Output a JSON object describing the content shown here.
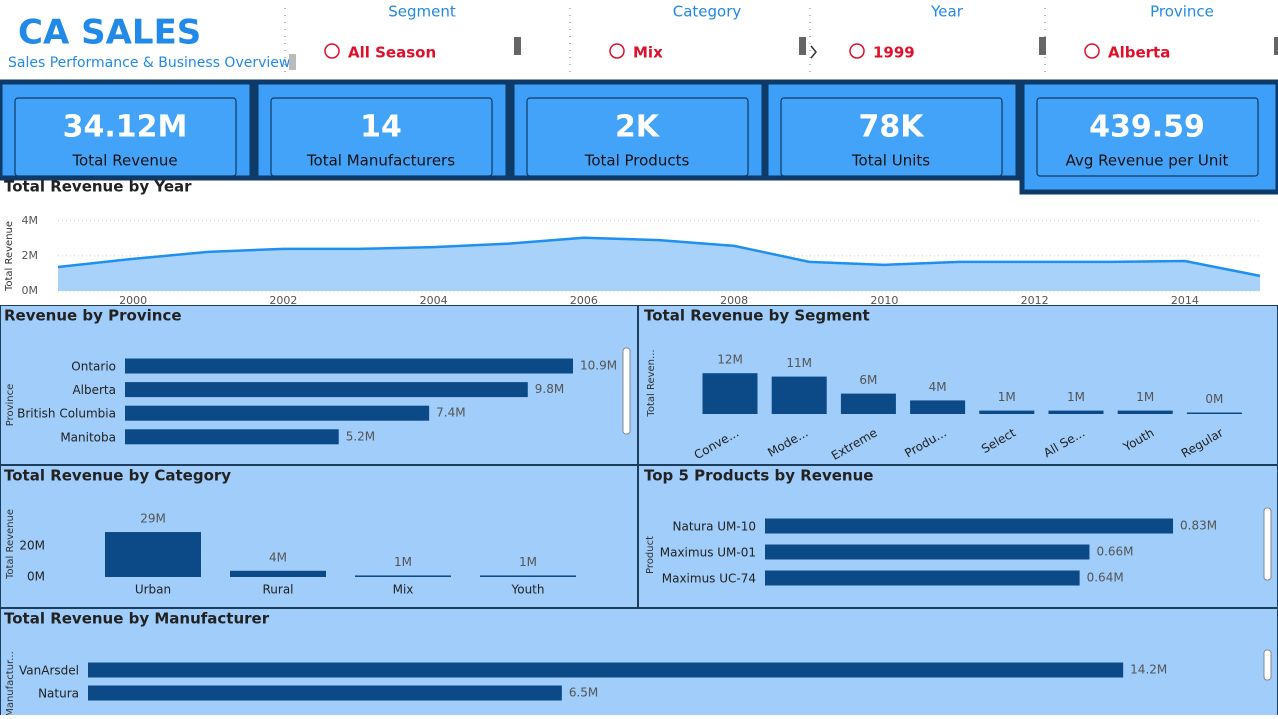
{
  "header": {
    "title": "CA SALES",
    "subtitle": "Sales Performance & Business Overview"
  },
  "slicers": [
    {
      "title": "Segment",
      "item": "All Season"
    },
    {
      "title": "Category",
      "item": "Mix"
    },
    {
      "title": "Year",
      "item": "1999"
    },
    {
      "title": "Province",
      "item": "Alberta"
    }
  ],
  "kpis": [
    {
      "value": "34.12M",
      "label": "Total Revenue"
    },
    {
      "value": "14",
      "label": "Total Manufacturers"
    },
    {
      "value": "2K",
      "label": "Total Products"
    },
    {
      "value": "78K",
      "label": "Total Units"
    },
    {
      "value": "439.59",
      "label": "Avg Revenue per Unit"
    }
  ],
  "chart_data": [
    {
      "type": "line",
      "title": "Total Revenue by Year",
      "y_label": "Total Revenue",
      "color": "#1f8ff0",
      "fill": "#a9d2fa",
      "x": [
        1999,
        2000,
        2001,
        2002,
        2003,
        2004,
        2005,
        2006,
        2007,
        2008,
        2009,
        2010,
        2011,
        2012,
        2013,
        2014,
        2015
      ],
      "values": [
        1.37,
        1.83,
        2.23,
        2.4,
        2.4,
        2.5,
        2.7,
        3.03,
        2.9,
        2.57,
        1.66,
        1.49,
        1.66,
        1.66,
        1.66,
        1.71,
        0.86
      ],
      "xlim": [
        1999,
        2015
      ],
      "xticks": [
        2000,
        2002,
        2004,
        2006,
        2008,
        2010,
        2012,
        2014
      ],
      "ylim": [
        0,
        4.5
      ],
      "yticks": [
        {
          "value": 0,
          "label": "0M"
        },
        {
          "value": 2,
          "label": "2M"
        },
        {
          "value": 4,
          "label": "4M"
        }
      ],
      "grid": true
    },
    {
      "type": "hbar",
      "title": "Revenue by Province",
      "y_label": "Province",
      "color": "#0b4a87",
      "categories": [
        "Ontario",
        "Alberta",
        "British Columbia",
        "Manitoba"
      ],
      "values": [
        10.9,
        9.8,
        7.4,
        5.2
      ],
      "value_labels": [
        "10.9M",
        "9.8M",
        "7.4M",
        "5.2M"
      ]
    },
    {
      "type": "column",
      "title": "Total Revenue by Segment",
      "y_label": "Total Reven...",
      "color": "#0b4a87",
      "categories": [
        "Conve...",
        "Mode...",
        "Extreme",
        "Produ...",
        "Select",
        "All Se...",
        "Youth",
        "Regular"
      ],
      "values": [
        12,
        11,
        6,
        4,
        1,
        1,
        1,
        0
      ],
      "value_labels": [
        "12M",
        "11M",
        "6M",
        "4M",
        "1M",
        "1M",
        "1M",
        "0M"
      ]
    },
    {
      "type": "column",
      "title": "Total Revenue by Category",
      "y_label": "Total Revenue",
      "color": "#0b4a87",
      "categories": [
        "Urban",
        "Rural",
        "Mix",
        "Youth"
      ],
      "values": [
        29,
        4,
        1,
        1
      ],
      "value_labels": [
        "29M",
        "4M",
        "1M",
        "1M"
      ],
      "ylim": [
        0,
        40
      ],
      "yticks": [
        {
          "value": 0,
          "label": "0M"
        },
        {
          "value": 20,
          "label": "20M"
        }
      ]
    },
    {
      "type": "hbar",
      "title": "Top 5 Products by Revenue",
      "y_label": "Product",
      "color": "#0b4a87",
      "categories": [
        "Natura UM-10",
        "Maximus UM-01",
        "Maximus UC-74"
      ],
      "values": [
        0.83,
        0.66,
        0.64
      ],
      "value_labels": [
        "0.83M",
        "0.66M",
        "0.64M"
      ]
    },
    {
      "type": "hbar",
      "title": "Total Revenue by Manufacturer",
      "y_label": "Manufactur...",
      "color": "#0b4a87",
      "categories": [
        "VanArsdel",
        "Natura"
      ],
      "values": [
        14.2,
        6.5
      ],
      "value_labels": [
        "14.2M",
        "6.5M"
      ]
    }
  ]
}
